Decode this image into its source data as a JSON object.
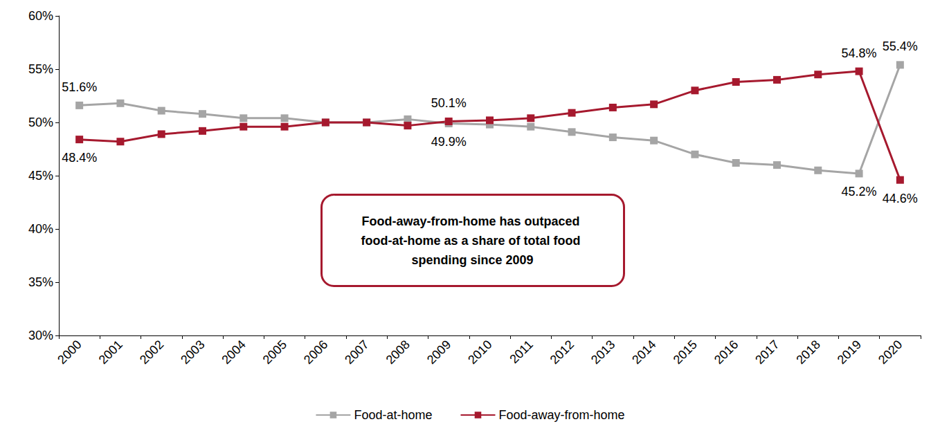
{
  "chart_data": {
    "type": "line",
    "categories": [
      "2000",
      "2001",
      "2002",
      "2003",
      "2004",
      "2005",
      "2006",
      "2007",
      "2008",
      "2009",
      "2010",
      "2011",
      "2012",
      "2013",
      "2014",
      "2015",
      "2016",
      "2017",
      "2018",
      "2019",
      "2020"
    ],
    "series": [
      {
        "name": "Food-at-home",
        "color": "#a5a5a5",
        "marker": "square",
        "line_style": "solid",
        "values": [
          51.6,
          51.8,
          51.1,
          50.8,
          50.4,
          50.4,
          50.0,
          50.0,
          50.3,
          49.9,
          49.8,
          49.6,
          49.1,
          48.6,
          48.3,
          47.0,
          46.2,
          46.0,
          45.5,
          45.2,
          55.4
        ],
        "value_labels": [
          "51.6%",
          null,
          null,
          null,
          null,
          null,
          null,
          null,
          null,
          "49.9%",
          null,
          null,
          null,
          null,
          null,
          null,
          null,
          null,
          null,
          "45.2%",
          "55.4%"
        ]
      },
      {
        "name": "Food-away-from-home",
        "color": "#a6192e",
        "marker": "square",
        "line_style": "solid",
        "values": [
          48.4,
          48.2,
          48.9,
          49.2,
          49.6,
          49.6,
          50.0,
          50.0,
          49.7,
          50.1,
          50.2,
          50.4,
          50.9,
          51.4,
          51.7,
          53.0,
          53.8,
          54.0,
          54.5,
          54.8,
          44.6
        ],
        "value_labels": [
          "48.4%",
          null,
          null,
          null,
          null,
          null,
          null,
          null,
          null,
          "50.1%",
          null,
          null,
          null,
          null,
          null,
          null,
          null,
          null,
          null,
          "54.8%",
          "44.6%"
        ]
      }
    ],
    "ylim": [
      30,
      60
    ],
    "yticks": [
      {
        "value": 30,
        "label": "30%"
      },
      {
        "value": 35,
        "label": "35%"
      },
      {
        "value": 40,
        "label": "40%"
      },
      {
        "value": 45,
        "label": "45%"
      },
      {
        "value": 50,
        "label": "50%"
      },
      {
        "value": 55,
        "label": "55%"
      },
      {
        "value": 60,
        "label": "60%"
      }
    ],
    "annotations": [
      {
        "text": "Food-away-from-home has outpaced food-at-home as a share of total food spending since 2009"
      }
    ],
    "legend": "bottom",
    "grid": false,
    "data_labels": true
  }
}
